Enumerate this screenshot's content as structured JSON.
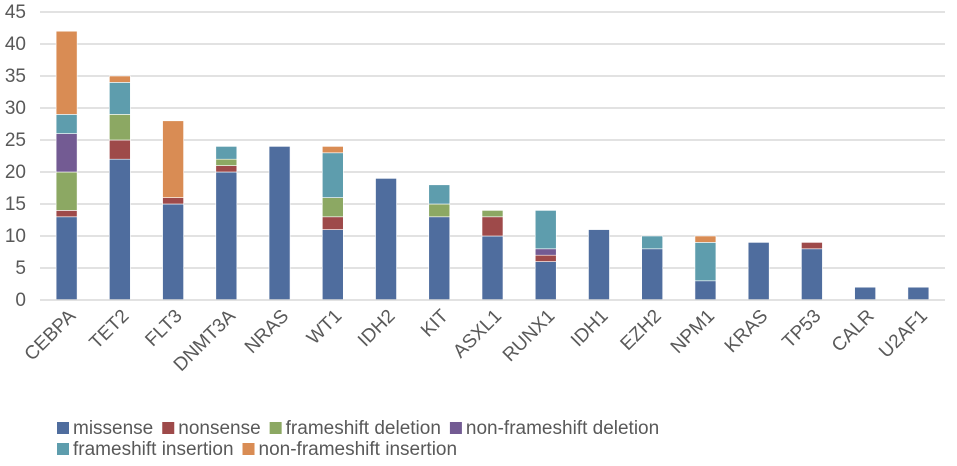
{
  "chart_data": {
    "type": "bar",
    "stacked": true,
    "categories": [
      "CEBPA",
      "TET2",
      "FLT3",
      "DNMT3A",
      "NRAS",
      "WT1",
      "IDH2",
      "KIT",
      "ASXL1",
      "RUNX1",
      "IDH1",
      "EZH2",
      "NPM1",
      "KRAS",
      "TP53",
      "CALR",
      "U2AF1"
    ],
    "series": [
      {
        "name": "missense",
        "color": "#4F6D9E",
        "values": [
          13,
          22,
          15,
          20,
          24,
          11,
          19,
          13,
          10,
          6,
          11,
          8,
          3,
          9,
          8,
          2,
          2
        ]
      },
      {
        "name": "nonsense",
        "color": "#9E4A4A",
        "values": [
          1,
          3,
          1,
          1,
          0,
          2,
          0,
          0,
          3,
          1,
          0,
          0,
          0,
          0,
          1,
          0,
          0
        ]
      },
      {
        "name": "frameshift deletion",
        "color": "#8CA863",
        "values": [
          6,
          4,
          0,
          1,
          0,
          3,
          0,
          2,
          1,
          0,
          0,
          0,
          0,
          0,
          0,
          0,
          0
        ]
      },
      {
        "name": "non-frameshift deletion",
        "color": "#735B93",
        "values": [
          6,
          0,
          0,
          0,
          0,
          0,
          0,
          0,
          0,
          1,
          0,
          0,
          0,
          0,
          0,
          0,
          0
        ]
      },
      {
        "name": "frameshift insertion",
        "color": "#5E9DAD",
        "values": [
          3,
          5,
          0,
          2,
          0,
          7,
          0,
          3,
          0,
          6,
          0,
          2,
          6,
          0,
          0,
          0,
          0
        ]
      },
      {
        "name": "non-frameshift insertion",
        "color": "#D98C54",
        "values": [
          13,
          1,
          12,
          0,
          0,
          1,
          0,
          0,
          0,
          0,
          0,
          0,
          1,
          0,
          0,
          0,
          0
        ]
      }
    ],
    "ylim": [
      0,
      45
    ],
    "yticks": [
      0,
      5,
      10,
      15,
      20,
      25,
      30,
      35,
      40,
      45
    ],
    "grid": true,
    "legend_position": "bottom",
    "title": "",
    "xlabel": "",
    "ylabel": ""
  }
}
